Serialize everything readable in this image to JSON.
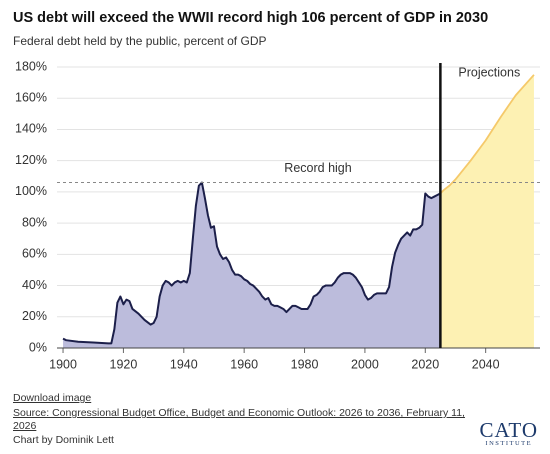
{
  "chart_data": {
    "type": "area",
    "title": "US debt will exceed the WWII record high 106 percent of GDP in 2030",
    "subtitle": "Federal debt held by the public, percent of GDP",
    "series": [
      {
        "color": "#1c1f4a",
        "fill": "#bcbcdc",
        "x": [
          1900,
          1901,
          1905,
          1910,
          1915,
          1916,
          1917,
          1918,
          1919,
          1920,
          1921,
          1922,
          1923,
          1925,
          1927,
          1929,
          1930,
          1931,
          1932,
          1933,
          1934,
          1935,
          1936,
          1937,
          1938,
          1939,
          1940,
          1941,
          1942,
          1943,
          1944,
          1945,
          1946,
          1947,
          1948,
          1949,
          1950,
          1951,
          1952,
          1953,
          1954,
          1955,
          1956,
          1957,
          1958,
          1959,
          1960,
          1961,
          1962,
          1963,
          1964,
          1965,
          1966,
          1967,
          1968,
          1969,
          1970,
          1971,
          1972,
          1973,
          1974,
          1975,
          1976,
          1977,
          1978,
          1979,
          1980,
          1981,
          1982,
          1983,
          1984,
          1985,
          1986,
          1987,
          1988,
          1989,
          1990,
          1991,
          1992,
          1993,
          1994,
          1995,
          1996,
          1997,
          1998,
          1999,
          2000,
          2001,
          2002,
          2003,
          2004,
          2005,
          2006,
          2007,
          2008,
          2009,
          2010,
          2011,
          2012,
          2013,
          2014,
          2015,
          2016,
          2017,
          2018,
          2019,
          2020,
          2021,
          2022,
          2023,
          2024,
          2025
        ],
        "values": [
          6,
          5,
          4,
          3.5,
          3,
          3,
          12,
          29,
          33,
          28,
          31,
          30,
          25,
          22,
          18,
          15,
          16,
          20,
          33,
          40,
          43,
          42,
          40,
          42,
          43,
          42,
          43,
          42,
          48,
          70,
          91,
          104,
          106,
          96,
          85,
          77,
          78,
          65,
          60,
          57,
          58,
          55,
          50,
          47,
          47,
          46,
          44,
          43,
          41,
          40,
          38,
          36,
          33,
          31,
          32,
          28,
          27,
          27,
          26,
          25,
          23,
          25,
          27,
          27,
          26,
          25,
          25,
          25,
          28,
          33,
          34,
          36,
          39,
          40,
          40,
          40,
          42,
          45,
          47,
          48,
          48,
          48,
          47,
          45,
          42,
          39,
          34,
          31,
          32,
          34,
          35,
          35,
          35,
          35,
          39,
          52,
          61,
          66,
          70,
          72,
          74,
          72,
          76,
          76,
          77,
          79,
          99,
          97,
          96,
          97,
          98,
          99
        ]
      },
      {
        "color": "#f5c96a",
        "fill": "#fdf1b3",
        "x": [
          2025,
          2026,
          2028,
          2030,
          2035,
          2040,
          2045,
          2050,
          2056
        ],
        "values": [
          99,
          101,
          104,
          108,
          120,
          133,
          148,
          162,
          175
        ]
      }
    ],
    "annotations": [
      {
        "text": "Record high",
        "value": 106
      },
      {
        "text": "Projections"
      }
    ],
    "xlim": [
      1898,
      2058
    ],
    "xticks": [
      1900,
      1920,
      1940,
      1960,
      1980,
      2000,
      2020,
      2040
    ],
    "ylim": [
      0,
      180
    ],
    "yticks": [
      {
        "value": 0,
        "label": "0%"
      },
      {
        "value": 20,
        "label": "20%"
      },
      {
        "value": 40,
        "label": "40%"
      },
      {
        "value": 60,
        "label": "60%"
      },
      {
        "value": 80,
        "label": "80%"
      },
      {
        "value": 100,
        "label": "100%"
      },
      {
        "value": 120,
        "label": "120%"
      },
      {
        "value": 140,
        "label": "140%"
      },
      {
        "value": 160,
        "label": "160%"
      },
      {
        "value": 180,
        "label": "180%"
      }
    ],
    "grid": true
  },
  "footer": {
    "download": "Download image",
    "source": "Source: Congressional Budget Office, Budget and Economic Outlook: 2026 to 2036, February 11, 2026",
    "credit": "Chart by Dominik Lett",
    "logo": "CATO",
    "logo_sub": "INSTITUTE"
  }
}
